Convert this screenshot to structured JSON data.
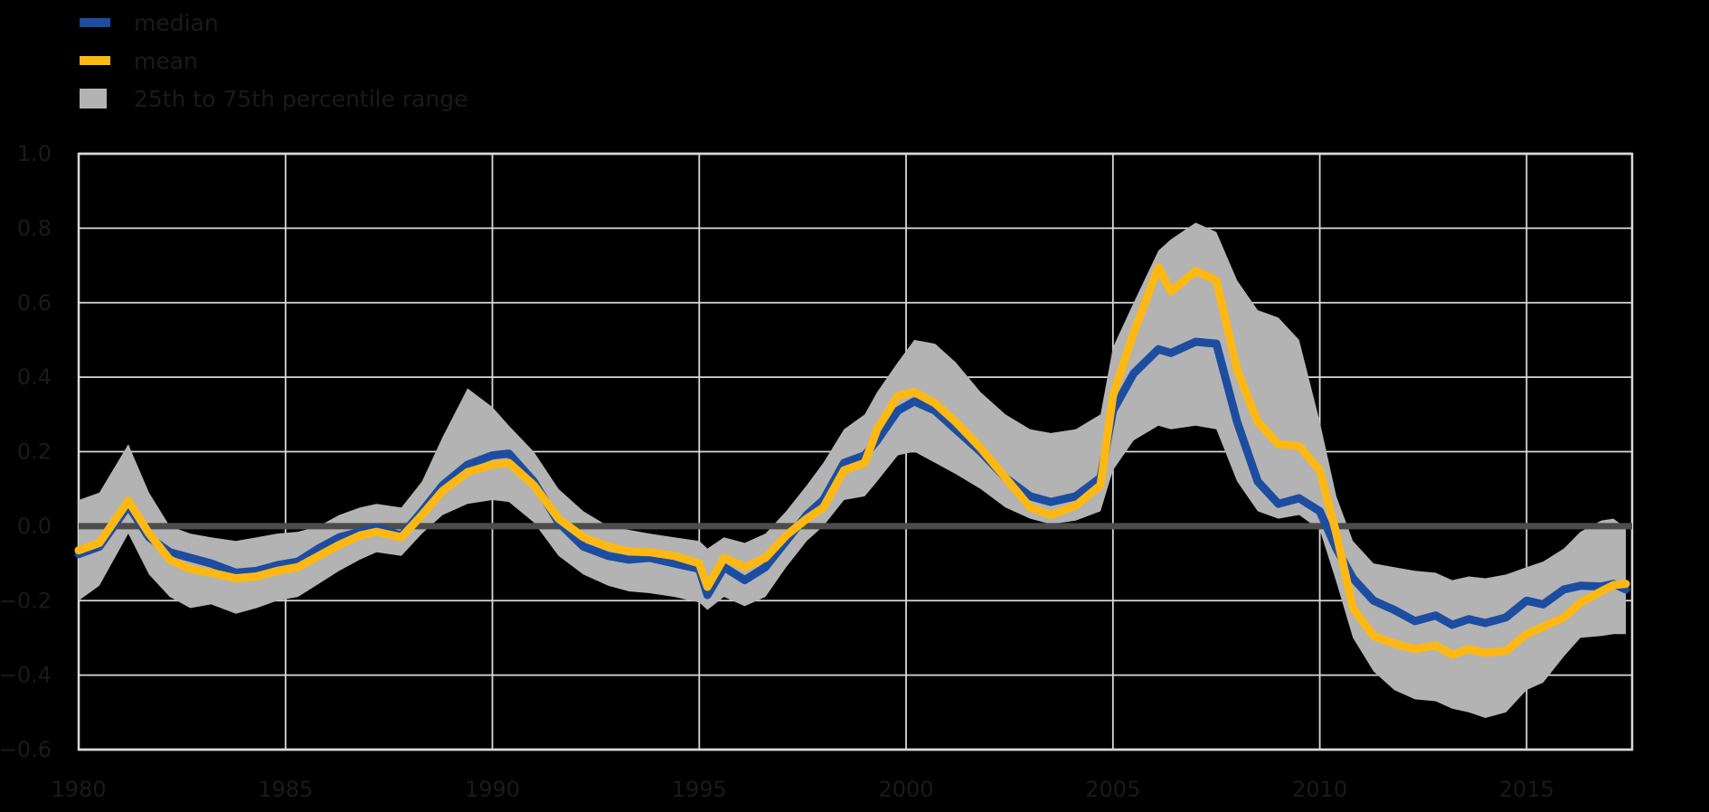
{
  "figure": {
    "background_color": "#000000",
    "grid_color": "#d9d9d9",
    "text_color": "#1a1a1a"
  },
  "legend": {
    "items": [
      {
        "label": "median",
        "color": "#1c4da1",
        "swatch": "line"
      },
      {
        "label": "mean",
        "color": "#fdb813",
        "swatch": "line"
      },
      {
        "label": "25th to 75th percentile range",
        "color": "#b3b3b3",
        "swatch": "patch"
      }
    ]
  },
  "chart_data": {
    "type": "line",
    "title": "",
    "xlabel": "",
    "ylabel": "",
    "xlim": [
      1980,
      2017.55
    ],
    "ylim": [
      -0.6,
      1.0
    ],
    "grid": true,
    "legend_position": "upper left above axes",
    "zero_line": {
      "value": 0.0,
      "color": "#4c4c4c"
    },
    "x_ticks": [
      {
        "value": 1980,
        "label": "1980"
      },
      {
        "value": 1985,
        "label": "1985"
      },
      {
        "value": 1990,
        "label": "1990"
      },
      {
        "value": 1995,
        "label": "1995"
      },
      {
        "value": 2000,
        "label": "2000"
      },
      {
        "value": 2005,
        "label": "2005"
      },
      {
        "value": 2010,
        "label": "2010"
      },
      {
        "value": 2015,
        "label": "2015"
      }
    ],
    "y_ticks": [
      {
        "value": 1.0,
        "label": "1.0"
      },
      {
        "value": 0.8,
        "label": "0.8"
      },
      {
        "value": 0.6,
        "label": "0.6"
      },
      {
        "value": 0.4,
        "label": "0.4"
      },
      {
        "value": 0.2,
        "label": "0.2"
      },
      {
        "value": 0.0,
        "label": "0.0"
      },
      {
        "value": -0.2,
        "label": "−0.2"
      },
      {
        "value": -0.4,
        "label": "−0.4"
      },
      {
        "value": -0.6,
        "label": "−0.6"
      }
    ],
    "x": [
      1980.0,
      1980.5,
      1981.2,
      1981.7,
      1982.2,
      1982.7,
      1983.2,
      1983.8,
      1984.3,
      1984.8,
      1985.3,
      1985.8,
      1986.3,
      1986.8,
      1987.2,
      1987.8,
      1988.3,
      1988.8,
      1989.4,
      1990.0,
      1990.4,
      1991.0,
      1991.6,
      1992.2,
      1992.8,
      1993.3,
      1993.8,
      1994.4,
      1995.0,
      1995.2,
      1995.6,
      1996.1,
      1996.6,
      1997.1,
      1997.6,
      1998.0,
      1998.5,
      1999.0,
      1999.3,
      1999.8,
      2000.2,
      2000.7,
      2001.2,
      2001.8,
      2002.4,
      2003.0,
      2003.5,
      2004.1,
      2004.7,
      2005.0,
      2005.5,
      2006.1,
      2006.4,
      2007.0,
      2007.5,
      2008.0,
      2008.5,
      2009.0,
      2009.5,
      2010.0,
      2010.4,
      2010.8,
      2011.3,
      2011.8,
      2012.3,
      2012.8,
      2013.2,
      2013.6,
      2014.0,
      2014.5,
      2015.0,
      2015.4,
      2015.9,
      2016.3,
      2016.8,
      2017.1,
      2017.4
    ],
    "series": [
      {
        "name": "median",
        "color": "#1c4da1",
        "values": [
          -0.075,
          -0.055,
          0.055,
          -0.03,
          -0.07,
          -0.085,
          -0.1,
          -0.125,
          -0.12,
          -0.105,
          -0.095,
          -0.06,
          -0.03,
          -0.015,
          -0.005,
          -0.025,
          0.04,
          0.11,
          0.165,
          0.19,
          0.195,
          0.12,
          0.01,
          -0.055,
          -0.08,
          -0.09,
          -0.085,
          -0.1,
          -0.115,
          -0.185,
          -0.11,
          -0.145,
          -0.11,
          -0.04,
          0.03,
          0.07,
          0.17,
          0.19,
          0.23,
          0.31,
          0.335,
          0.31,
          0.26,
          0.2,
          0.13,
          0.08,
          0.065,
          0.08,
          0.13,
          0.31,
          0.41,
          0.475,
          0.465,
          0.495,
          0.49,
          0.28,
          0.12,
          0.06,
          0.075,
          0.04,
          -0.06,
          -0.14,
          -0.2,
          -0.225,
          -0.255,
          -0.24,
          -0.265,
          -0.25,
          -0.26,
          -0.245,
          -0.2,
          -0.21,
          -0.17,
          -0.16,
          -0.162,
          -0.155,
          -0.17
        ]
      },
      {
        "name": "mean",
        "color": "#fdb813",
        "values": [
          -0.065,
          -0.045,
          0.068,
          -0.02,
          -0.09,
          -0.115,
          -0.125,
          -0.14,
          -0.135,
          -0.12,
          -0.11,
          -0.08,
          -0.05,
          -0.025,
          -0.015,
          -0.03,
          0.03,
          0.095,
          0.145,
          0.165,
          0.17,
          0.11,
          0.02,
          -0.03,
          -0.055,
          -0.068,
          -0.07,
          -0.08,
          -0.1,
          -0.163,
          -0.085,
          -0.11,
          -0.085,
          -0.025,
          0.02,
          0.05,
          0.15,
          0.17,
          0.26,
          0.35,
          0.36,
          0.33,
          0.28,
          0.21,
          0.13,
          0.05,
          0.03,
          0.055,
          0.11,
          0.35,
          0.52,
          0.695,
          0.63,
          0.685,
          0.66,
          0.42,
          0.28,
          0.22,
          0.215,
          0.15,
          -0.02,
          -0.22,
          -0.295,
          -0.315,
          -0.33,
          -0.32,
          -0.345,
          -0.33,
          -0.34,
          -0.335,
          -0.29,
          -0.27,
          -0.245,
          -0.205,
          -0.175,
          -0.158,
          -0.155
        ]
      }
    ],
    "band": {
      "name": "25th to 75th percentile range",
      "color": "#b3b3b3",
      "lower": [
        -0.2,
        -0.16,
        -0.02,
        -0.13,
        -0.19,
        -0.22,
        -0.21,
        -0.235,
        -0.22,
        -0.2,
        -0.19,
        -0.155,
        -0.12,
        -0.09,
        -0.07,
        -0.08,
        -0.02,
        0.03,
        0.06,
        0.07,
        0.065,
        0.01,
        -0.08,
        -0.13,
        -0.16,
        -0.175,
        -0.18,
        -0.19,
        -0.205,
        -0.225,
        -0.19,
        -0.215,
        -0.19,
        -0.11,
        -0.04,
        0.0,
        0.07,
        0.08,
        0.12,
        0.19,
        0.2,
        0.17,
        0.14,
        0.1,
        0.05,
        0.02,
        0.005,
        0.015,
        0.04,
        0.15,
        0.23,
        0.27,
        0.26,
        0.27,
        0.26,
        0.12,
        0.04,
        0.02,
        0.03,
        -0.01,
        -0.15,
        -0.3,
        -0.39,
        -0.44,
        -0.465,
        -0.47,
        -0.49,
        -0.5,
        -0.515,
        -0.5,
        -0.44,
        -0.42,
        -0.35,
        -0.3,
        -0.295,
        -0.29,
        -0.29
      ],
      "upper": [
        0.07,
        0.09,
        0.22,
        0.09,
        0.0,
        -0.02,
        -0.03,
        -0.04,
        -0.03,
        -0.02,
        -0.015,
        0.0,
        0.03,
        0.05,
        0.06,
        0.05,
        0.12,
        0.24,
        0.37,
        0.32,
        0.27,
        0.2,
        0.1,
        0.04,
        0.0,
        -0.01,
        -0.02,
        -0.03,
        -0.04,
        -0.06,
        -0.03,
        -0.045,
        -0.02,
        0.04,
        0.11,
        0.17,
        0.26,
        0.3,
        0.36,
        0.44,
        0.5,
        0.49,
        0.44,
        0.36,
        0.3,
        0.26,
        0.25,
        0.26,
        0.3,
        0.48,
        0.6,
        0.74,
        0.77,
        0.815,
        0.79,
        0.66,
        0.58,
        0.56,
        0.5,
        0.28,
        0.08,
        -0.04,
        -0.1,
        -0.11,
        -0.12,
        -0.125,
        -0.145,
        -0.135,
        -0.14,
        -0.13,
        -0.11,
        -0.095,
        -0.06,
        -0.015,
        0.015,
        0.02,
        -0.005
      ]
    }
  }
}
